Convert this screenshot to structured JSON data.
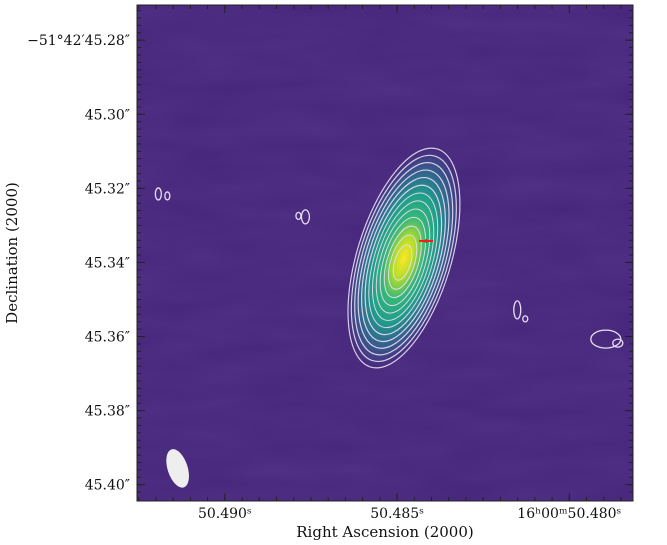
{
  "chart_data": {
    "type": "heatmap",
    "title": "",
    "xlabel": "Right Ascension (2000)",
    "ylabel": "Declination (2000)",
    "colormap": "viridis",
    "background_color": "#45267a",
    "contour_color": "#e9dff2",
    "marker_color": "#ff1a1a",
    "beam_color": "#eeeeee",
    "x_ticks": [
      {
        "sec": 50.49,
        "label": "50.490ˢ"
      },
      {
        "sec": 50.485,
        "label": "50.485ˢ"
      },
      {
        "sec": 50.48,
        "label": "16ʰ00ᵐ50.480ˢ"
      }
    ],
    "y_ticks": [
      {
        "arcsec": 45.28,
        "label": "−51°42′45.28″"
      },
      {
        "arcsec": 45.3,
        "label": "45.30″"
      },
      {
        "arcsec": 45.32,
        "label": "45.32″"
      },
      {
        "arcsec": 45.34,
        "label": "45.34″"
      },
      {
        "arcsec": 45.36,
        "label": "45.36″"
      },
      {
        "arcsec": 45.38,
        "label": "45.38″"
      },
      {
        "arcsec": 45.4,
        "label": "45.40″"
      }
    ],
    "x_range_sec": [
      50.49255,
      50.47815
    ],
    "y_range_arcsec": [
      45.2705,
      45.4044
    ],
    "source": {
      "center_sec": 50.4848,
      "center_arcsec": 45.3388,
      "contour_levels": 13,
      "position_angle_deg": 17
    },
    "marker": {
      "sec": 50.48416,
      "arcsec": 45.3342
    },
    "secondary_contours": [
      {
        "sec": 50.49193,
        "arcsec": 45.3215
      },
      {
        "sec": 50.48766,
        "arcsec": 45.3277
      },
      {
        "sec": 50.48151,
        "arcsec": 45.3528
      },
      {
        "sec": 50.47894,
        "arcsec": 45.3607
      }
    ],
    "beam": {
      "sec": 50.49137,
      "arcsec": 45.3956
    }
  }
}
